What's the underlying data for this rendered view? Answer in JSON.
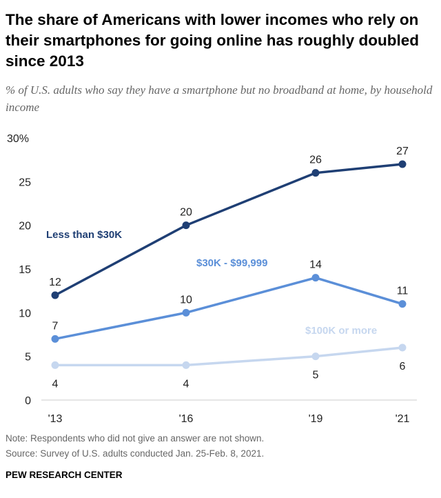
{
  "title": "The share of Americans with lower incomes who rely on their smartphones for going online has roughly doubled since 2013",
  "subtitle": "% of U.S. adults who say they have a smartphone but no broadband at home, by household income",
  "note": "Note: Respondents who did not give an answer are not shown.",
  "source": "Source: Survey of U.S. adults conducted Jan. 25-Feb. 8, 2021.",
  "brand": "PEW RESEARCH CENTER",
  "chart_data": {
    "type": "line",
    "categories": [
      "'13",
      "'16",
      "'19",
      "'21"
    ],
    "x": [
      2013,
      2016,
      2019,
      2021
    ],
    "ylim": [
      0,
      30
    ],
    "yticks": [
      0,
      5,
      10,
      15,
      20,
      25,
      30
    ],
    "ytick_labels": [
      "0",
      "5",
      "10",
      "15",
      "20",
      "25",
      "30%"
    ],
    "grid": false,
    "series": [
      {
        "name": "Less than $30K",
        "values": [
          12,
          20,
          26,
          27
        ],
        "color": "#1f3f74"
      },
      {
        "name": "$30K - $99,999",
        "values": [
          7,
          10,
          14,
          11
        ],
        "color": "#5b8fd8"
      },
      {
        "name": "$100K or more",
        "values": [
          4,
          4,
          5,
          6
        ],
        "color": "#c6d7ef"
      }
    ]
  }
}
